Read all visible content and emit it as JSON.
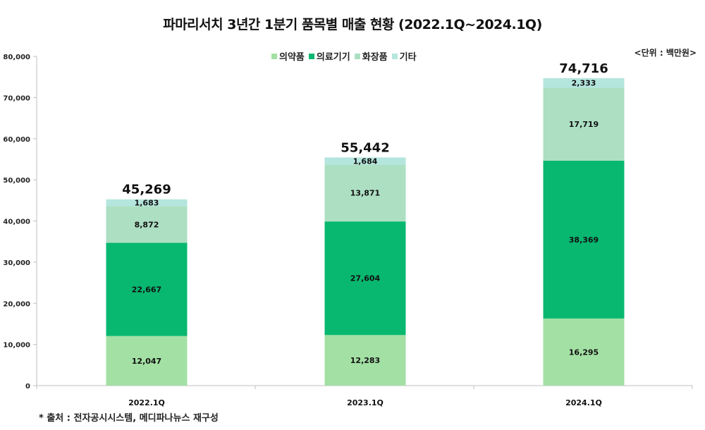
{
  "chart_data": {
    "type": "bar",
    "stacked": true,
    "title": "파마리서치 3년간 1분기 품목별 매출 현황 (2022.1Q~2024.1Q)",
    "unit_label": "<단위 : 백만원>",
    "xlabel": "",
    "ylabel": "",
    "ylim": [
      0,
      80000
    ],
    "y_ticks": [
      0,
      10000,
      20000,
      30000,
      40000,
      50000,
      60000,
      70000,
      80000
    ],
    "y_tick_labels": [
      "0",
      "10,000",
      "20,000",
      "30,000",
      "40,000",
      "50,000",
      "60,000",
      "70,000",
      "80,000"
    ],
    "grid": false,
    "legend_position": "top-center",
    "categories": [
      "2022.1Q",
      "2023.1Q",
      "2024.1Q"
    ],
    "series": [
      {
        "name": "의약품",
        "color": "#a3e0a4",
        "values": [
          12047,
          12283,
          16295
        ],
        "labels": [
          "12,047",
          "12,283",
          "16,295"
        ]
      },
      {
        "name": "의료기기",
        "color": "#08b870",
        "values": [
          22667,
          27604,
          38369
        ],
        "labels": [
          "22,667",
          "27,604",
          "38,369"
        ]
      },
      {
        "name": "화장품",
        "color": "#addfc3",
        "values": [
          8872,
          13871,
          17719
        ],
        "labels": [
          "8,872",
          "13,871",
          "17,719"
        ]
      },
      {
        "name": "기타",
        "color": "#b4e6de",
        "values": [
          1683,
          1684,
          2333
        ],
        "labels": [
          "1,683",
          "1,684",
          "2,333"
        ]
      }
    ],
    "totals": [
      45269,
      55442,
      74716
    ],
    "total_labels": [
      "45,269",
      "55,442",
      "74,716"
    ],
    "source_note": "* 출처 : 전자공시시스템, 메디파나뉴스 재구성"
  }
}
